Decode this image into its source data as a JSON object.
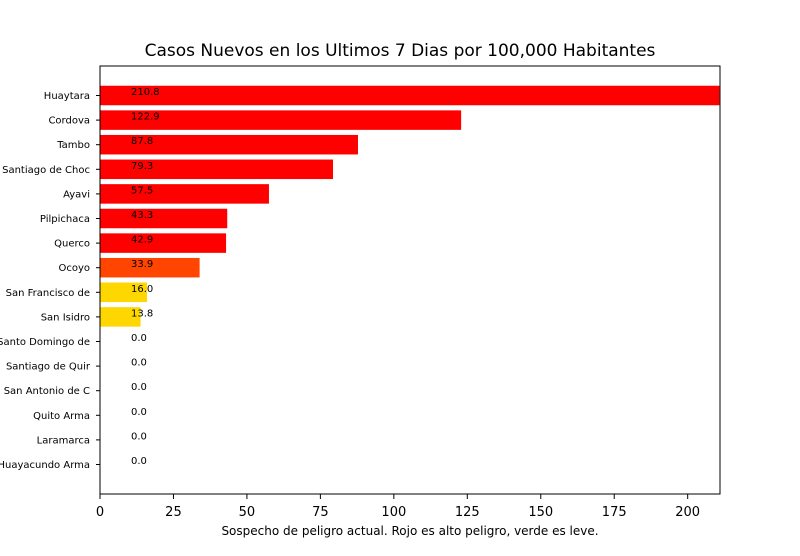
{
  "chart_data": {
    "type": "bar",
    "orientation": "horizontal",
    "title": "Casos Nuevos en los Ultimos 7 Dias por 100,000 Habitantes",
    "xlabel": "Sospecho de peligro actual. Rojo es alto peligro, verde es leve.",
    "ylabel": "",
    "xlim": [
      0,
      211
    ],
    "xticks": [
      0,
      25,
      50,
      75,
      100,
      125,
      150,
      175,
      200
    ],
    "grid": false,
    "categories": [
      "Huaytara",
      "Cordova",
      "Tambo",
      "Santiago de Choc",
      "Ayavi",
      "Pilpichaca",
      "Querco",
      "Ocoyo",
      "San Francisco de",
      "San Isidro",
      "Santo Domingo de",
      "Santiago de Quir",
      "San Antonio de C",
      "Quito Arma",
      "Laramarca",
      "Huayacundo Arma"
    ],
    "values": [
      210.8,
      122.9,
      87.8,
      79.3,
      57.5,
      43.3,
      42.9,
      33.9,
      16.0,
      13.8,
      0.0,
      0.0,
      0.0,
      0.0,
      0.0,
      0.0
    ],
    "labels": [
      "210.8",
      "122.9",
      "87.8",
      "79.3",
      "57.5",
      "43.3",
      "42.9",
      "33.9",
      "16.0",
      "13.8",
      "0.0",
      "0.0",
      "0.0",
      "0.0",
      "0.0",
      "0.0"
    ],
    "colors": [
      "#ff0000",
      "#ff0000",
      "#ff0000",
      "#ff0000",
      "#ff0000",
      "#ff0000",
      "#ff0000",
      "#ff4500",
      "#ffd700",
      "#ffd700",
      "#ffd700",
      "#ffd700",
      "#ffd700",
      "#ffd700",
      "#ffd700",
      "#ffd700"
    ]
  }
}
